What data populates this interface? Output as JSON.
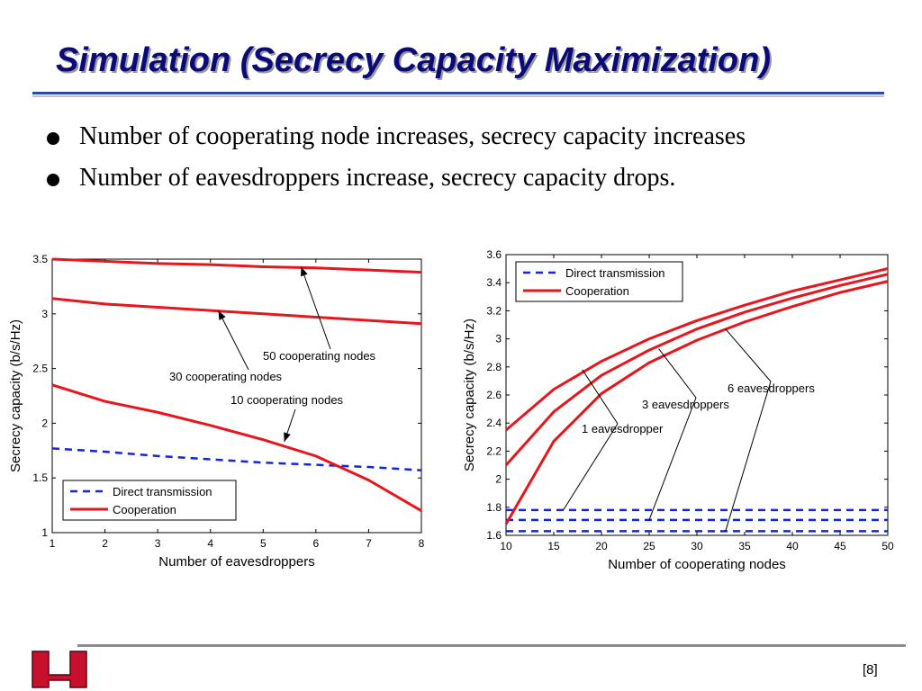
{
  "slide": {
    "title": "Simulation (Secrecy Capacity Maximization)",
    "bullets": [
      "Number of cooperating node increases, secrecy capacity increases",
      "Number of eavesdroppers increase, secrecy capacity drops."
    ],
    "page_number": "[8]",
    "logo_text": "UH"
  },
  "colors": {
    "title": "#0a0a78",
    "cooperation": "#e8161c",
    "direct": "#1226e0",
    "rule": "#2c49a8"
  },
  "chart_data": [
    {
      "type": "line",
      "xlabel": "Number of eavesdroppers",
      "ylabel": "Secrecy capacity (b/s/Hz)",
      "xlim": [
        1,
        8
      ],
      "ylim": [
        1,
        3.5
      ],
      "xticks": [
        1,
        2,
        3,
        4,
        5,
        6,
        7,
        8
      ],
      "yticks": [
        1,
        1.5,
        2,
        2.5,
        3,
        3.5
      ],
      "legend": {
        "position": "bottom-left",
        "entries": [
          "Direct transmission",
          "Cooperation"
        ]
      },
      "series": [
        {
          "name": "Direct transmission",
          "style": "dashed",
          "color": "#1226e0",
          "x": [
            1,
            2,
            3,
            4,
            5,
            6,
            7,
            8
          ],
          "y": [
            1.77,
            1.74,
            1.7,
            1.67,
            1.64,
            1.62,
            1.6,
            1.57
          ]
        },
        {
          "name": "Cooperation (50 cooperating nodes)",
          "style": "solid",
          "color": "#e8161c",
          "x": [
            1,
            2,
            3,
            4,
            5,
            6,
            7,
            8
          ],
          "y": [
            3.5,
            3.48,
            3.46,
            3.45,
            3.43,
            3.42,
            3.4,
            3.38
          ]
        },
        {
          "name": "Cooperation (30 cooperating nodes)",
          "style": "solid",
          "color": "#e8161c",
          "x": [
            1,
            2,
            3,
            4,
            5,
            6,
            7,
            8
          ],
          "y": [
            3.14,
            3.09,
            3.06,
            3.03,
            3.0,
            2.97,
            2.94,
            2.91
          ]
        },
        {
          "name": "Cooperation (10 cooperating nodes)",
          "style": "solid",
          "color": "#e8161c",
          "x": [
            1,
            2,
            3,
            4,
            5,
            6,
            7,
            8
          ],
          "y": [
            2.35,
            2.2,
            2.1,
            1.98,
            1.85,
            1.7,
            1.48,
            1.2
          ]
        }
      ],
      "annotations": [
        {
          "text": "50 cooperating nodes",
          "x": 5.7,
          "y": 2.64,
          "arrow_to": [
            5.72,
            3.43
          ]
        },
        {
          "text": "30 cooperating nodes",
          "x": 3.5,
          "y": 2.44,
          "arrow_to": [
            4.15,
            3.03
          ]
        },
        {
          "text": "10 cooperating nodes",
          "x": 5.3,
          "y": 2.21,
          "arrow_to": [
            5.4,
            1.83
          ]
        }
      ]
    },
    {
      "type": "line",
      "xlabel": "Number of cooperating nodes",
      "ylabel": "Secrecy capacity (b/s/Hz)",
      "xlim": [
        10,
        50
      ],
      "ylim": [
        1.6,
        3.6
      ],
      "xticks": [
        10,
        15,
        20,
        25,
        30,
        35,
        40,
        45,
        50
      ],
      "yticks": [
        1.6,
        1.8,
        2,
        2.2,
        2.4,
        2.6,
        2.8,
        3,
        3.2,
        3.4,
        3.6
      ],
      "legend": {
        "position": "top-left",
        "entries": [
          "Direct transmission",
          "Cooperation"
        ]
      },
      "series": [
        {
          "name": "Direct transmission (1 eavesdropper)",
          "style": "dashed",
          "color": "#1226e0",
          "x": [
            10,
            50
          ],
          "y": [
            1.78,
            1.78
          ]
        },
        {
          "name": "Direct transmission (3 eavesdroppers)",
          "style": "dashed",
          "color": "#1226e0",
          "x": [
            10,
            50
          ],
          "y": [
            1.71,
            1.71
          ]
        },
        {
          "name": "Direct transmission (6 eavesdroppers)",
          "style": "dashed",
          "color": "#1226e0",
          "x": [
            10,
            50
          ],
          "y": [
            1.63,
            1.63
          ]
        },
        {
          "name": "Cooperation (1 eavesdropper)",
          "style": "solid",
          "color": "#e8161c",
          "x": [
            10,
            15,
            20,
            25,
            30,
            35,
            40,
            45,
            50
          ],
          "y": [
            2.35,
            2.64,
            2.84,
            3.0,
            3.13,
            3.24,
            3.34,
            3.42,
            3.5
          ]
        },
        {
          "name": "Cooperation (3 eavesdroppers)",
          "style": "solid",
          "color": "#e8161c",
          "x": [
            10,
            15,
            20,
            25,
            30,
            35,
            40,
            45,
            50
          ],
          "y": [
            2.1,
            2.48,
            2.74,
            2.92,
            3.07,
            3.19,
            3.29,
            3.38,
            3.46
          ]
        },
        {
          "name": "Cooperation (6 eavesdroppers)",
          "style": "solid",
          "color": "#e8161c",
          "x": [
            10,
            15,
            20,
            25,
            30,
            35,
            40,
            45,
            50
          ],
          "y": [
            1.68,
            2.27,
            2.61,
            2.83,
            2.99,
            3.12,
            3.23,
            3.33,
            3.41
          ]
        }
      ],
      "annotations": [
        {
          "text": "1 eavesdropper",
          "x": 26,
          "y": 2.35,
          "arrow_to": [
            [
              18,
              2.78
            ],
            [
              16,
              1.78
            ]
          ]
        },
        {
          "text": "3 eavesdroppers",
          "x": 32,
          "y": 2.55,
          "arrow_to": [
            [
              26,
              2.93
            ],
            [
              25,
              1.71
            ]
          ]
        },
        {
          "text": "6 eavesdroppers",
          "x": 40,
          "y": 2.66,
          "arrow_to": [
            [
              33,
              3.07
            ],
            [
              33,
              1.63
            ]
          ]
        }
      ]
    }
  ]
}
